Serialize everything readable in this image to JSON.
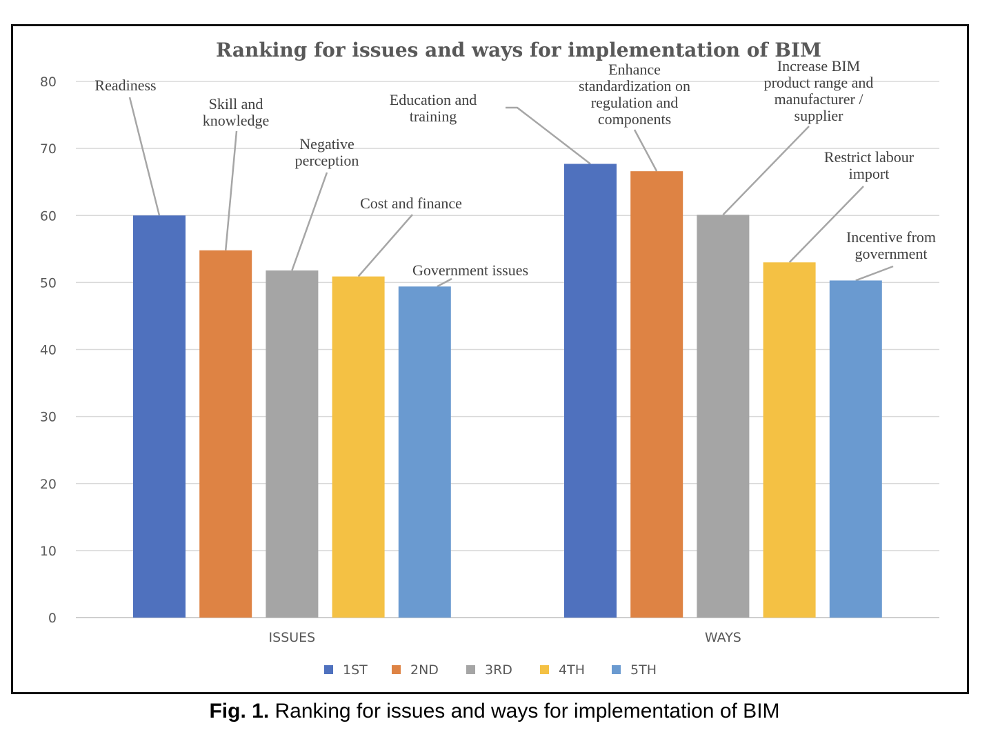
{
  "caption": {
    "label": "Fig. 1.",
    "text": "Ranking for issues and ways for implementation of BIM"
  },
  "chart_data": {
    "type": "bar",
    "title": "Ranking for issues and ways for implementation of BIM",
    "categories": [
      "ISSUES",
      "WAYS"
    ],
    "ylim": [
      0,
      80
    ],
    "yticks": [
      "0",
      "10",
      "20",
      "30",
      "40",
      "50",
      "60",
      "70",
      "80"
    ],
    "grid": true,
    "legend_position": "bottom",
    "series": [
      {
        "name": "1ST",
        "color": "#4f71be",
        "values": [
          60,
          67.7
        ]
      },
      {
        "name": "2ND",
        "color": "#de8344",
        "values": [
          54.8,
          66.6
        ]
      },
      {
        "name": "3RD",
        "color": "#a5a5a5",
        "values": [
          51.8,
          60.1
        ]
      },
      {
        "name": "4TH",
        "color": "#f4c144",
        "values": [
          50.9,
          53
        ]
      },
      {
        "name": "5TH",
        "color": "#6a9ad0",
        "values": [
          49.4,
          50.3
        ]
      }
    ],
    "annotations": [
      {
        "lines": [
          "Readiness"
        ],
        "category": 0,
        "series": 0
      },
      {
        "lines": [
          "Skill  and",
          "knowledge"
        ],
        "category": 0,
        "series": 1
      },
      {
        "lines": [
          "Negative",
          "perception"
        ],
        "category": 0,
        "series": 2
      },
      {
        "lines": [
          "Cost and finance"
        ],
        "category": 0,
        "series": 3
      },
      {
        "lines": [
          "Government issues"
        ],
        "category": 0,
        "series": 4
      },
      {
        "lines": [
          "Education  and",
          "training"
        ],
        "category": 1,
        "series": 0
      },
      {
        "lines": [
          "Enhance",
          "standardization  on",
          "regulation  and",
          "components"
        ],
        "category": 1,
        "series": 1
      },
      {
        "lines": [
          "Increase BIM",
          "product range  and",
          "manufacturer  /",
          "supplier"
        ],
        "category": 1,
        "series": 2
      },
      {
        "lines": [
          "Restrict labour",
          "import"
        ],
        "category": 1,
        "series": 3
      },
      {
        "lines": [
          "Incentive  from",
          "government"
        ],
        "category": 1,
        "series": 4
      }
    ]
  }
}
